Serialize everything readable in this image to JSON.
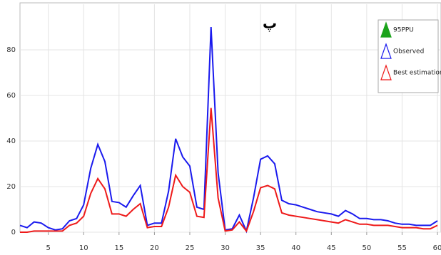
{
  "chart_data": {
    "type": "line",
    "title": "پ",
    "x": [
      1,
      2,
      3,
      4,
      5,
      6,
      7,
      8,
      9,
      10,
      11,
      12,
      13,
      14,
      15,
      16,
      17,
      18,
      19,
      20,
      21,
      22,
      23,
      24,
      25,
      26,
      27,
      28,
      29,
      30,
      31,
      32,
      33,
      34,
      35,
      36,
      37,
      38,
      39,
      40,
      41,
      42,
      43,
      44,
      45,
      46,
      47,
      48,
      49,
      50,
      51,
      52,
      53,
      54,
      55,
      56,
      57,
      58,
      59,
      60
    ],
    "series": [
      {
        "name": "95PPU",
        "color": "#1aa31a",
        "marker": "filled-triangle",
        "values": [
          null,
          null,
          null,
          null,
          null,
          null,
          null,
          null,
          null,
          null,
          null,
          null,
          null,
          null,
          null,
          null,
          null,
          null,
          null,
          null,
          null,
          null,
          null,
          null,
          null,
          null,
          null,
          null,
          null,
          null,
          null,
          null,
          null,
          null,
          null,
          null,
          null,
          null,
          null,
          null,
          null,
          null,
          null,
          null,
          null,
          null,
          null,
          null,
          null,
          null,
          null,
          null,
          null,
          null,
          null,
          null,
          null,
          null,
          null,
          null
        ]
      },
      {
        "name": "Observed",
        "color": "#1a1aee",
        "marker": "open-triangle",
        "values": [
          3,
          2,
          4.5,
          4,
          2,
          1,
          1.5,
          5,
          6,
          12,
          28,
          38.5,
          31,
          13.5,
          13,
          11,
          16,
          20.5,
          3,
          4,
          4,
          18,
          41,
          33,
          29,
          11,
          10,
          90,
          26,
          1,
          1.5,
          7.5,
          0.5,
          15,
          32,
          33.5,
          30,
          14,
          12.5,
          12,
          11,
          10,
          9,
          8.5,
          8,
          7,
          9.5,
          8,
          6,
          6,
          5.5,
          5.5,
          5,
          4,
          3.5,
          3.5,
          3,
          3,
          3,
          5
        ]
      },
      {
        "name": "Best estimation",
        "color": "#ee1a1a",
        "marker": "open-triangle",
        "values": [
          0,
          0,
          0.5,
          0.5,
          0.5,
          0.5,
          0.5,
          3,
          4,
          7,
          17,
          23.5,
          19,
          8,
          8,
          7,
          10,
          12.5,
          2,
          2.5,
          2.5,
          11,
          25,
          20,
          17.5,
          7,
          6.5,
          54.5,
          15,
          0.5,
          1,
          4.5,
          0.5,
          9,
          19.5,
          20.5,
          19,
          8.5,
          7.5,
          7,
          6.5,
          6,
          5.5,
          5,
          4.5,
          4,
          5.5,
          4.5,
          3.5,
          3.5,
          3,
          3,
          3,
          2.5,
          2,
          2,
          2,
          1.5,
          1.5,
          3
        ]
      }
    ],
    "xlim": [
      1,
      60.5
    ],
    "ylim": [
      0,
      100
    ],
    "xticks": [
      5,
      10,
      15,
      20,
      25,
      30,
      35,
      40,
      45,
      50,
      55,
      60
    ],
    "yticks": [
      0,
      20,
      40,
      60,
      80
    ],
    "grid": true,
    "legend": "upper right"
  }
}
